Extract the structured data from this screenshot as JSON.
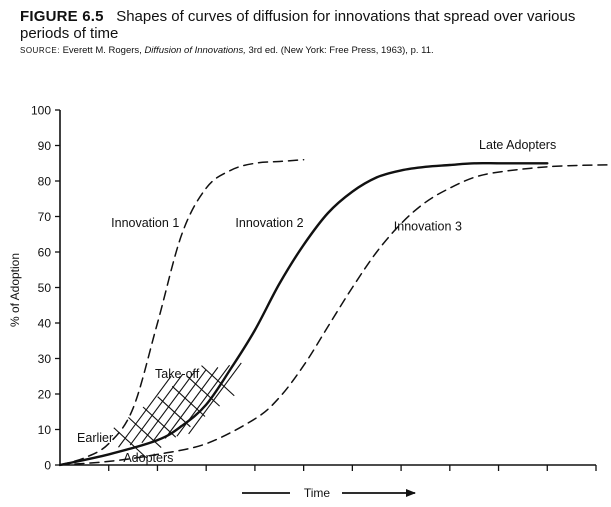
{
  "caption": {
    "figure_label": "FIGURE 6.5",
    "title": "Shapes of curves of diffusion for innovations that spread over various periods of time",
    "source_label": "SOURCE:",
    "source_author": "Everett M. Rogers,",
    "source_book": "Diffusion of Innovations,",
    "source_rest": "3rd ed. (New York: Free Press, 1963), p. 11."
  },
  "chart_data": {
    "type": "line",
    "title": "Shapes of curves of diffusion for innovations that spread over various periods of time",
    "xlabel": "Time",
    "ylabel": "% of Adoption",
    "ylim": [
      0,
      100
    ],
    "yticks": [
      "0",
      "10",
      "20",
      "30",
      "40",
      "50",
      "60",
      "70",
      "80",
      "90",
      "100"
    ],
    "xlim": [
      0,
      11
    ],
    "x_ticks_unlabeled": [
      1,
      2,
      3,
      4,
      5,
      6,
      7,
      8,
      9,
      10,
      11
    ],
    "grid": false,
    "series": [
      {
        "name": "Innovation 1",
        "style": "dashed",
        "x": [
          0,
          0.5,
          1.0,
          1.5,
          2.0,
          2.5,
          3.0,
          3.5,
          4.0,
          4.5,
          5.0
        ],
        "values": [
          0,
          2,
          6,
          16,
          40,
          65,
          78,
          83,
          85,
          85.5,
          86
        ]
      },
      {
        "name": "Innovation 2",
        "style": "solid",
        "x": [
          0,
          1.0,
          2.0,
          2.5,
          3.0,
          3.5,
          4.0,
          4.5,
          5.0,
          5.5,
          6.0,
          6.5,
          7.0,
          7.5,
          8.0,
          8.5,
          9.0,
          9.5,
          10.0
        ],
        "values": [
          0,
          3,
          7,
          11,
          17,
          27,
          38,
          51,
          62,
          71,
          77,
          81,
          83,
          84,
          84.5,
          85,
          85,
          85,
          85
        ]
      },
      {
        "name": "Innovation 3",
        "style": "dashed",
        "x": [
          0,
          1.0,
          2.0,
          3.0,
          4.0,
          4.5,
          5.0,
          5.5,
          6.0,
          6.5,
          7.0,
          7.5,
          8.0,
          8.5,
          9.0,
          10.0,
          11.0,
          11.5
        ],
        "values": [
          0,
          1,
          3,
          6,
          13,
          19,
          28,
          39,
          50,
          60,
          68,
          74,
          78,
          81,
          82.5,
          84,
          84.5,
          84.5
        ]
      }
    ],
    "annotations": [
      {
        "text": "Innovation 1",
        "x": 1.05,
        "y": 67
      },
      {
        "text": "Innovation 2",
        "x": 3.6,
        "y": 67
      },
      {
        "text": "Innovation 3",
        "x": 6.85,
        "y": 66
      },
      {
        "text": "Late Adopters",
        "x": 8.6,
        "y": 89
      },
      {
        "text": "Take-off",
        "x": 1.95,
        "y": 24.5
      },
      {
        "text": "Earlier",
        "x": 0.35,
        "y": 6.5
      },
      {
        "text": "Adopters",
        "x": 1.3,
        "y": 0.9
      }
    ],
    "crosshatch": {
      "label": "Take-off",
      "x_range": [
        1.2,
        3.6
      ],
      "y_range": [
        5,
        30
      ]
    }
  }
}
